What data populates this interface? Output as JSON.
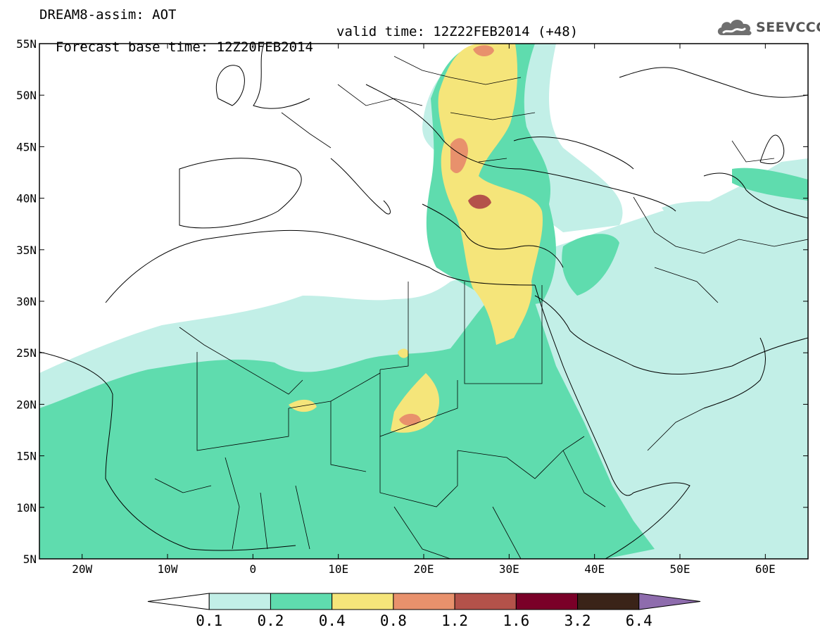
{
  "title": {
    "line1": "DREAM8-assim: AOT",
    "base": "Forecast base time: 12Z20FEB2014",
    "valid": "valid time: 12Z22FEB2014 (+48)"
  },
  "logo": {
    "text": "SEEVCCC",
    "icon": "cloud-icon"
  },
  "map": {
    "lon_range": [
      -25,
      65
    ],
    "lat_range": [
      5,
      55
    ],
    "lat_labels": [
      "55N",
      "50N",
      "45N",
      "40N",
      "35N",
      "30N",
      "25N",
      "20N",
      "15N",
      "10N",
      "5N"
    ],
    "lon_labels": [
      "20W",
      "10W",
      "0",
      "10E",
      "20E",
      "30E",
      "40E",
      "50E",
      "60E"
    ]
  },
  "colorbar": {
    "labels": [
      "0.1",
      "0.2",
      "0.4",
      "0.8",
      "1.2",
      "1.6",
      "3.2",
      "6.4"
    ],
    "colors": [
      "#ffffff",
      "#c2efe7",
      "#5fdcae",
      "#f5e57a",
      "#e8916c",
      "#b4524a",
      "#7a0028",
      "#3a2318",
      "#8e6cad"
    ]
  }
}
